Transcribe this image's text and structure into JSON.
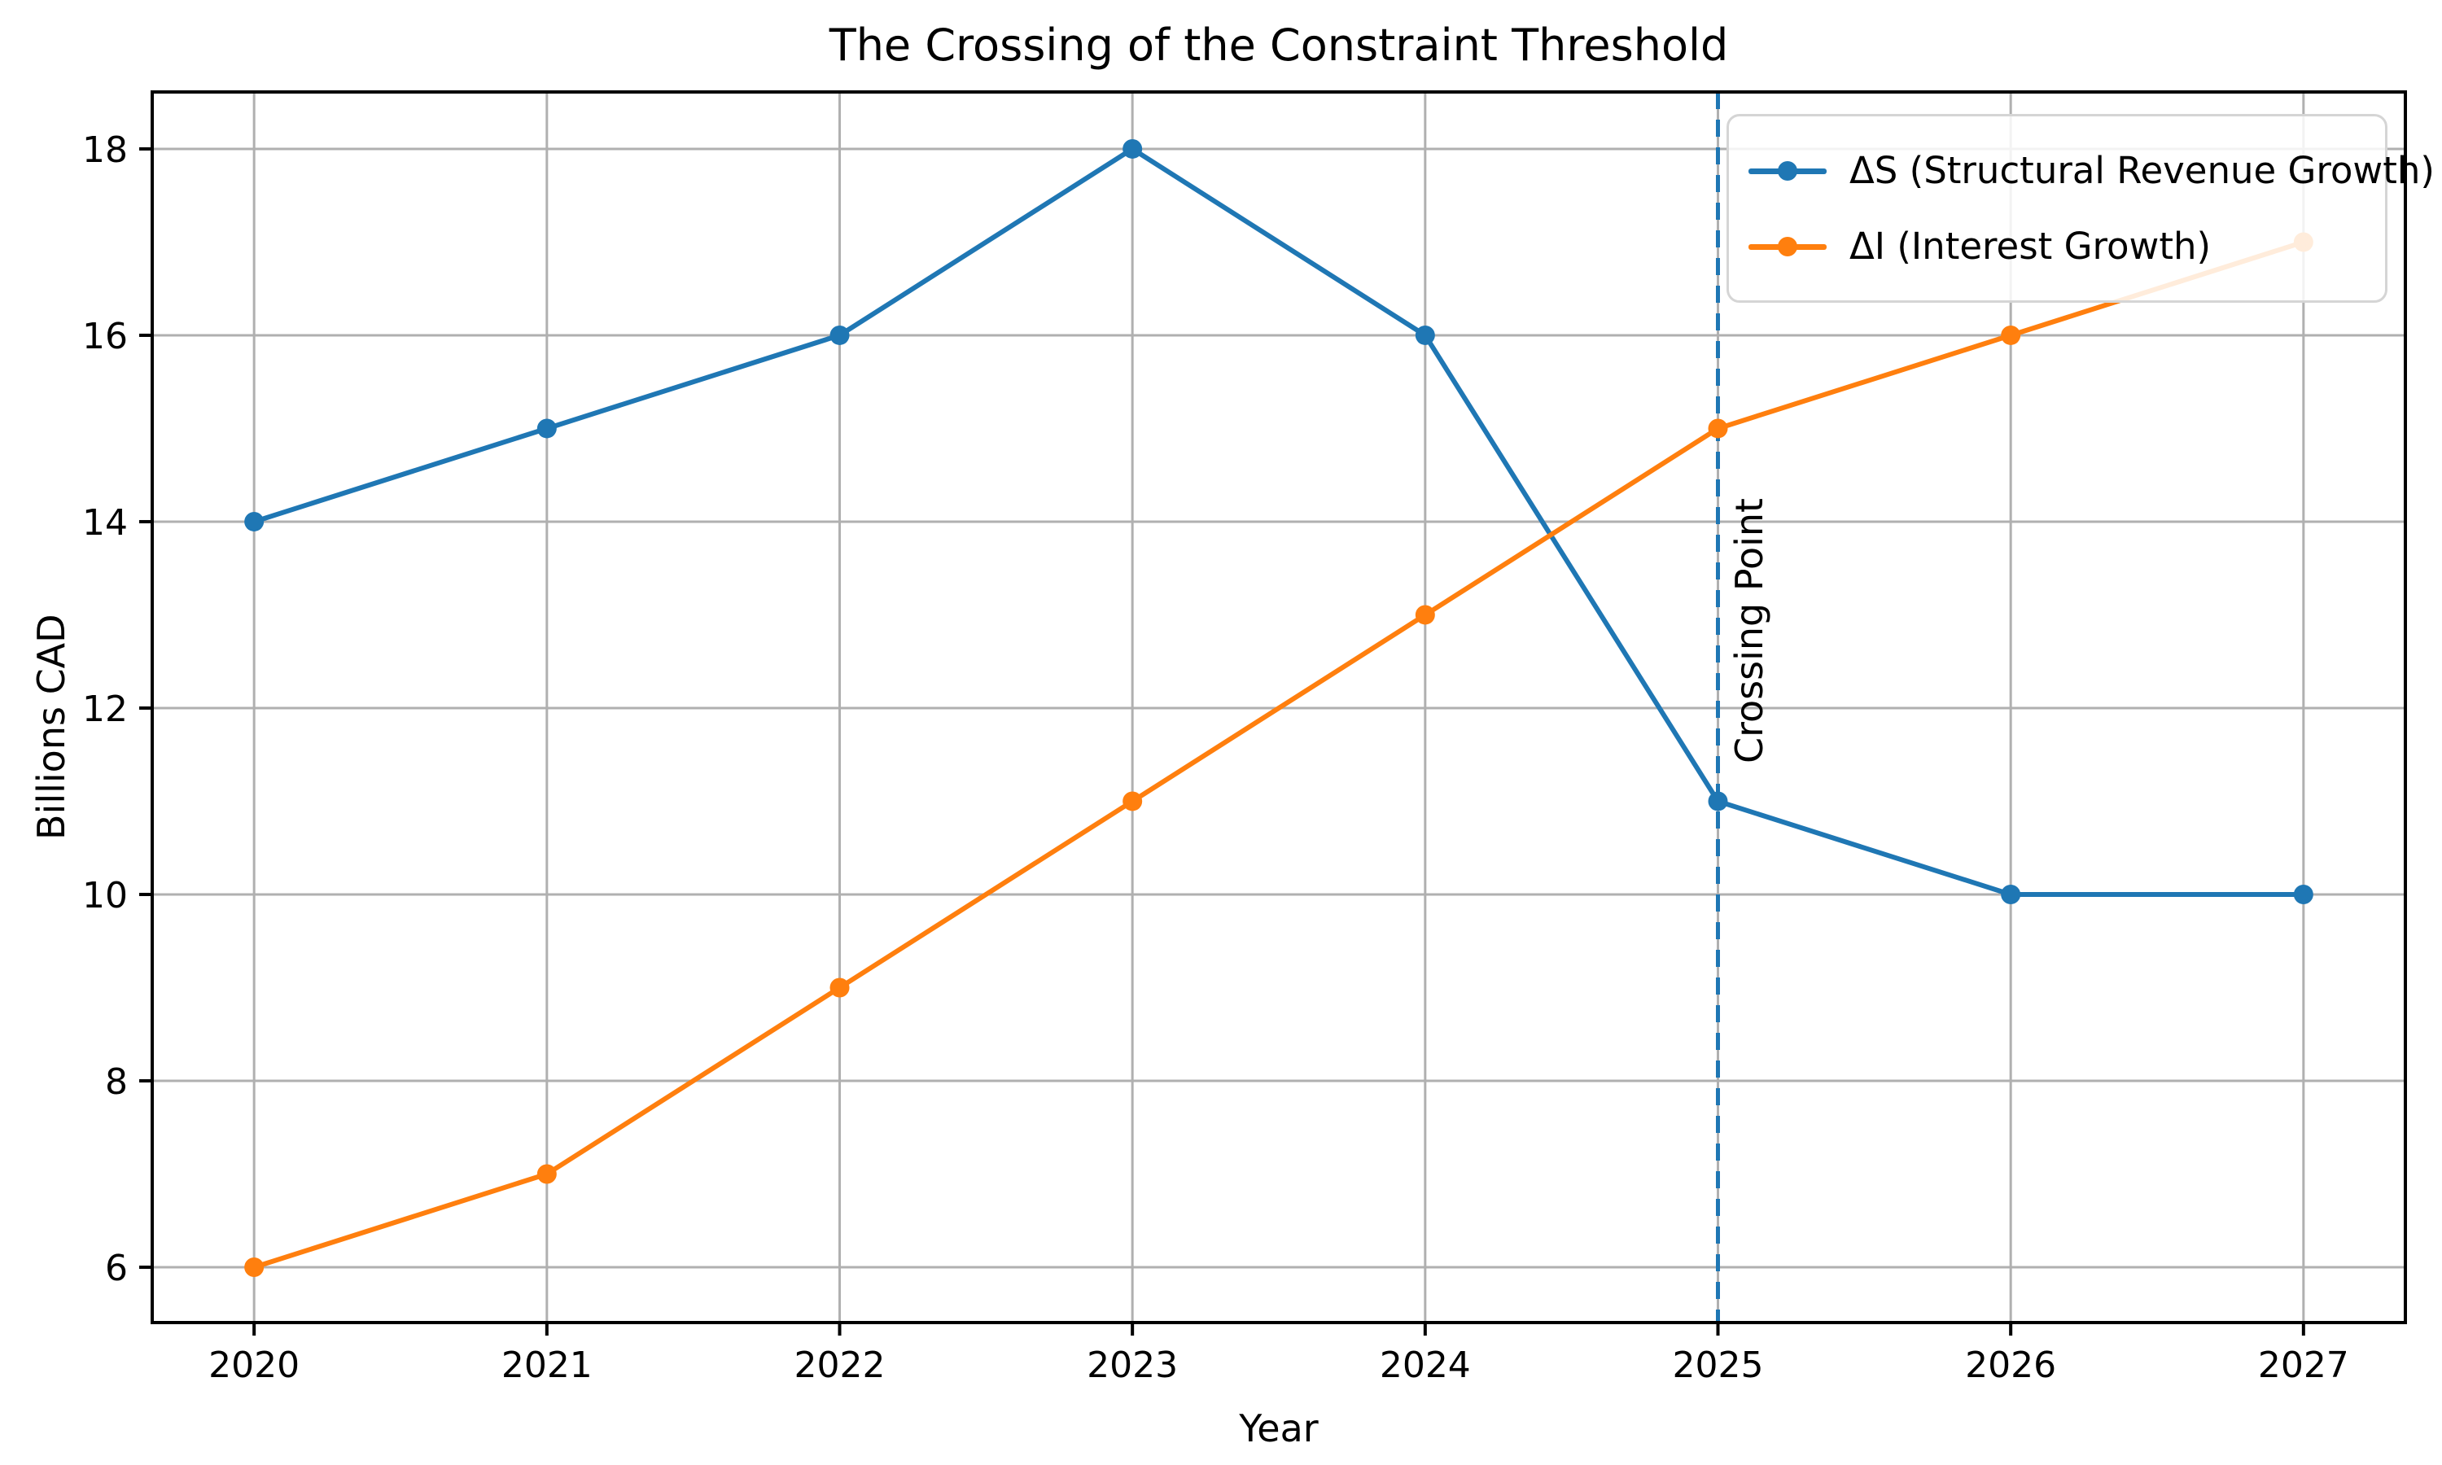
{
  "chart_data": {
    "type": "line",
    "title": "The Crossing of the Constraint Threshold",
    "xlabel": "Year",
    "ylabel": "Billions CAD",
    "x": [
      2020,
      2021,
      2022,
      2023,
      2024,
      2025,
      2026,
      2027
    ],
    "x_tick_labels": [
      "2020",
      "2021",
      "2022",
      "2023",
      "2024",
      "2025",
      "2026",
      "2027"
    ],
    "y_ticks": [
      6,
      8,
      10,
      12,
      14,
      16,
      18
    ],
    "xlim": [
      2019.652,
      2027.348
    ],
    "ylim": [
      5.406,
      18.611
    ],
    "grid": true,
    "legend_position": "upper right",
    "series": [
      {
        "name": "ΔS (Structural Revenue Growth)",
        "color": "#1f77b4",
        "marker": "circle",
        "values": [
          14,
          15,
          16,
          18,
          16,
          11,
          10,
          10
        ]
      },
      {
        "name": "ΔI (Interest Growth)",
        "color": "#ff7f0e",
        "marker": "circle",
        "values": [
          6,
          7,
          9,
          11,
          13,
          15,
          16,
          17
        ]
      }
    ],
    "vline": {
      "x": 2025,
      "color": "#1f77b4",
      "style": "dashed",
      "label": "Crossing Point"
    },
    "colors": {
      "grid": "#b0b0b0",
      "axes": "#000000",
      "background": "#ffffff",
      "legend_border": "#d5d5d5"
    }
  }
}
